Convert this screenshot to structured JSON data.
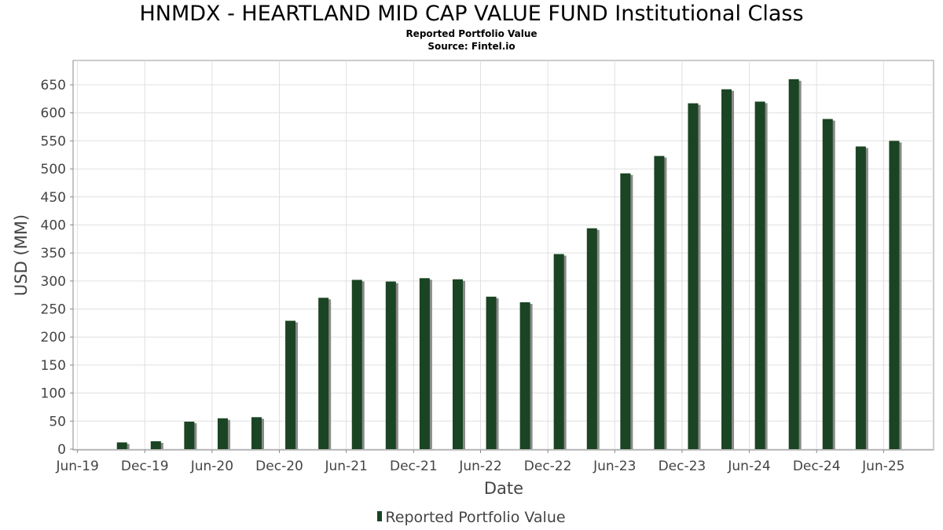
{
  "chart_data": {
    "type": "bar",
    "title": "HNMDX - HEARTLAND MID CAP VALUE FUND Institutional Class",
    "subtitle": "Reported Portfolio Value",
    "source": "Source: Fintel.io",
    "xlabel": "Date",
    "ylabel": "USD (MM)",
    "ylim": [
      0,
      680
    ],
    "yticks": [
      0,
      50,
      100,
      150,
      200,
      250,
      300,
      350,
      400,
      450,
      500,
      550,
      600,
      650
    ],
    "xlim": [
      "2019-05-20",
      "2025-10-15"
    ],
    "xticks": [
      {
        "label": "Jun-19",
        "date": "2019-06-01"
      },
      {
        "label": "Dec-19",
        "date": "2019-12-01"
      },
      {
        "label": "Jun-20",
        "date": "2020-06-01"
      },
      {
        "label": "Dec-20",
        "date": "2020-12-01"
      },
      {
        "label": "Jun-21",
        "date": "2021-06-01"
      },
      {
        "label": "Dec-21",
        "date": "2021-12-01"
      },
      {
        "label": "Jun-22",
        "date": "2022-06-01"
      },
      {
        "label": "Dec-22",
        "date": "2022-12-01"
      },
      {
        "label": "Jun-23",
        "date": "2023-06-01"
      },
      {
        "label": "Dec-23",
        "date": "2023-12-01"
      },
      {
        "label": "Jun-24",
        "date": "2024-06-01"
      },
      {
        "label": "Dec-24",
        "date": "2024-12-01"
      },
      {
        "label": "Jun-25",
        "date": "2025-06-01"
      }
    ],
    "grid": true,
    "legend_position": "bottom",
    "series": [
      {
        "name": "Reported Portfolio Value",
        "color": "#1a4423",
        "points": [
          {
            "date": "2019-09-30",
            "value": 12
          },
          {
            "date": "2019-12-31",
            "value": 14
          },
          {
            "date": "2020-03-31",
            "value": 49
          },
          {
            "date": "2020-06-30",
            "value": 55
          },
          {
            "date": "2020-09-30",
            "value": 57
          },
          {
            "date": "2020-12-31",
            "value": 229
          },
          {
            "date": "2021-03-31",
            "value": 270
          },
          {
            "date": "2021-06-30",
            "value": 302
          },
          {
            "date": "2021-09-30",
            "value": 299
          },
          {
            "date": "2021-12-31",
            "value": 305
          },
          {
            "date": "2022-03-31",
            "value": 303
          },
          {
            "date": "2022-06-30",
            "value": 272
          },
          {
            "date": "2022-09-30",
            "value": 262
          },
          {
            "date": "2022-12-31",
            "value": 348
          },
          {
            "date": "2023-03-31",
            "value": 394
          },
          {
            "date": "2023-06-30",
            "value": 492
          },
          {
            "date": "2023-09-30",
            "value": 523
          },
          {
            "date": "2023-12-31",
            "value": 617
          },
          {
            "date": "2024-03-31",
            "value": 642
          },
          {
            "date": "2024-06-30",
            "value": 620
          },
          {
            "date": "2024-09-30",
            "value": 660
          },
          {
            "date": "2024-12-31",
            "value": 589
          },
          {
            "date": "2025-03-31",
            "value": 540
          },
          {
            "date": "2025-06-30",
            "value": 550
          }
        ]
      }
    ]
  }
}
